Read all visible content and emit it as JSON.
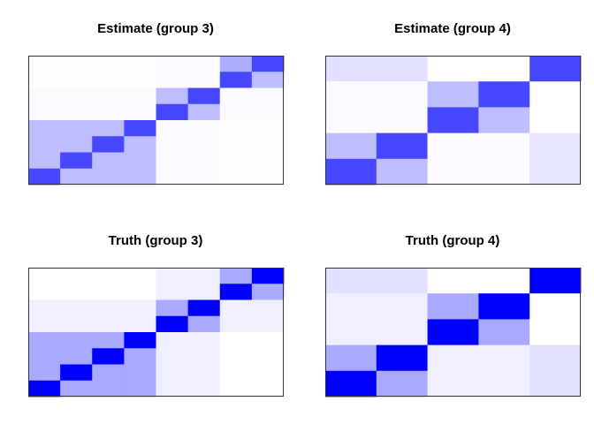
{
  "chart_data": [
    {
      "type": "heatmap",
      "title": "Estimate (group 3)",
      "rows": 8,
      "cols": 8,
      "cells": [
        [
          "#fefeff",
          "#fefeff",
          "#fefeff",
          "#fefeff",
          "#fbfbff",
          "#fbfbff",
          "#aeaeff",
          "#4747ff"
        ],
        [
          "#fefeff",
          "#fefeff",
          "#fefeff",
          "#fefeff",
          "#fbfbff",
          "#fbfbff",
          "#4747ff",
          "#bebeff"
        ],
        [
          "#fbfbff",
          "#fbfbff",
          "#fbfbff",
          "#fbfbff",
          "#bcbcff",
          "#4747ff",
          "#fbfbff",
          "#fbfbff"
        ],
        [
          "#fbfbff",
          "#fbfbff",
          "#fbfbff",
          "#fbfbff",
          "#4747ff",
          "#bcbcff",
          "#fbfbff",
          "#fbfbff"
        ],
        [
          "#bebeff",
          "#bebeff",
          "#bebeff",
          "#4747ff",
          "#fbfbff",
          "#fbfbff",
          "#fefeff",
          "#fefeff"
        ],
        [
          "#bebeff",
          "#bebeff",
          "#4747ff",
          "#bebeff",
          "#fbfbff",
          "#fbfbff",
          "#fefeff",
          "#fefeff"
        ],
        [
          "#bebeff",
          "#4747ff",
          "#bebeff",
          "#bebeff",
          "#fbfbff",
          "#fbfbff",
          "#fefeff",
          "#fefeff"
        ],
        [
          "#4747ff",
          "#bebeff",
          "#bebeff",
          "#bebeff",
          "#fbfbff",
          "#fbfbff",
          "#fefeff",
          "#fefeff"
        ]
      ]
    },
    {
      "type": "heatmap",
      "title": "Estimate (group 4)",
      "rows": 5,
      "cols": 5,
      "cells": [
        [
          "#e1e1ff",
          "#e1e1ff",
          "#ffffff",
          "#ffffff",
          "#4747ff"
        ],
        [
          "#fbfbff",
          "#fbfbff",
          "#bebeff",
          "#4747ff",
          "#ffffff"
        ],
        [
          "#fbfbff",
          "#fbfbff",
          "#4747ff",
          "#bebeff",
          "#ffffff"
        ],
        [
          "#bebeff",
          "#4747ff",
          "#fbfbff",
          "#fbfbff",
          "#e6e6ff"
        ],
        [
          "#4747ff",
          "#bebeff",
          "#fbfbff",
          "#fbfbff",
          "#e6e6ff"
        ]
      ]
    },
    {
      "type": "heatmap",
      "title": "Truth (group 3)",
      "rows": 8,
      "cols": 8,
      "cells": [
        [
          "#ffffff",
          "#ffffff",
          "#ffffff",
          "#ffffff",
          "#efefff",
          "#efefff",
          "#a9a9ff",
          "#0000ff"
        ],
        [
          "#ffffff",
          "#ffffff",
          "#ffffff",
          "#ffffff",
          "#efefff",
          "#efefff",
          "#0000ff",
          "#a9a9ff"
        ],
        [
          "#efefff",
          "#efefff",
          "#efefff",
          "#efefff",
          "#a9a9ff",
          "#0000ff",
          "#efefff",
          "#efefff"
        ],
        [
          "#efefff",
          "#efefff",
          "#efefff",
          "#efefff",
          "#0000ff",
          "#a9a9ff",
          "#efefff",
          "#efefff"
        ],
        [
          "#a9a9ff",
          "#a9a9ff",
          "#a9a9ff",
          "#0000ff",
          "#efefff",
          "#efefff",
          "#ffffff",
          "#ffffff"
        ],
        [
          "#a9a9ff",
          "#a9a9ff",
          "#0000ff",
          "#a9a9ff",
          "#efefff",
          "#efefff",
          "#ffffff",
          "#ffffff"
        ],
        [
          "#a9a9ff",
          "#0000ff",
          "#a9a9ff",
          "#a9a9ff",
          "#efefff",
          "#efefff",
          "#ffffff",
          "#ffffff"
        ],
        [
          "#0000ff",
          "#a9a9ff",
          "#a9a9ff",
          "#a9a9ff",
          "#efefff",
          "#efefff",
          "#ffffff",
          "#ffffff"
        ]
      ]
    },
    {
      "type": "heatmap",
      "title": "Truth (group 4)",
      "rows": 5,
      "cols": 5,
      "cells": [
        [
          "#e1e1ff",
          "#e1e1ff",
          "#ffffff",
          "#ffffff",
          "#0000ff"
        ],
        [
          "#efefff",
          "#efefff",
          "#a9a9ff",
          "#0000ff",
          "#ffffff"
        ],
        [
          "#efefff",
          "#efefff",
          "#0000ff",
          "#a9a9ff",
          "#ffffff"
        ],
        [
          "#a9a9ff",
          "#0000ff",
          "#efefff",
          "#efefff",
          "#e1e1ff"
        ],
        [
          "#0000ff",
          "#a9a9ff",
          "#efefff",
          "#efefff",
          "#e1e1ff"
        ]
      ]
    }
  ]
}
